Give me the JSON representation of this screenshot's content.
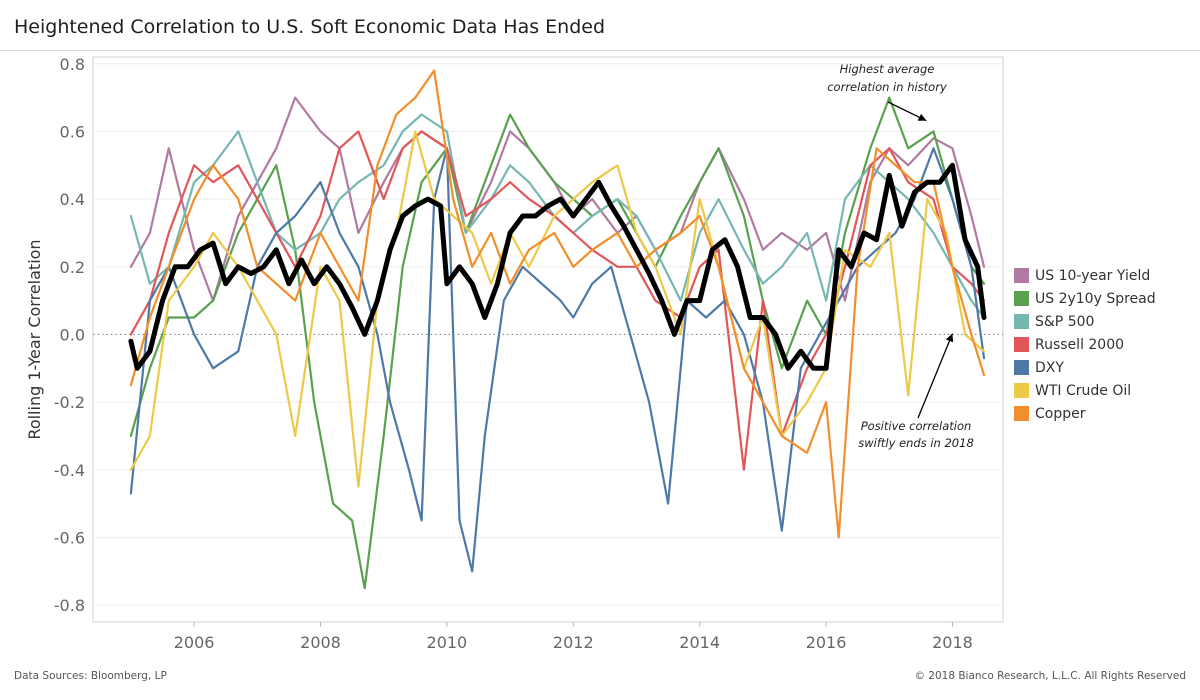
{
  "title": "Heightened Correlation to U.S. Soft Economic Data Has Ended",
  "footer": {
    "sources": "Data Sources: Bloomberg, LP",
    "copyright": "© 2018 Bianco Research, L.L.C. All Rights Reserved"
  },
  "legend": [
    {
      "label": "US 10-year Yield",
      "color": "#b07aa1"
    },
    {
      "label": "US 2y10y Spread",
      "color": "#59a14f"
    },
    {
      "label": "S&P 500",
      "color": "#76b7b2"
    },
    {
      "label": "Russell 2000",
      "color": "#e15759"
    },
    {
      "label": "DXY",
      "color": "#4e79a7"
    },
    {
      "label": "WTI Crude Oil",
      "color": "#edc948"
    },
    {
      "label": "Copper",
      "color": "#f28e2b"
    }
  ],
  "chart_data": {
    "type": "line",
    "title": "Heightened Correlation to U.S. Soft Economic Data Has Ended",
    "ylabel": "Rolling 1-Year Correlation",
    "xlabel": "",
    "xlim": [
      2004.4,
      2018.8
    ],
    "ylim": [
      -0.85,
      0.82
    ],
    "x_ticks": [
      2006,
      2008,
      2010,
      2012,
      2014,
      2016,
      2018
    ],
    "y_ticks": [
      -0.8,
      -0.6,
      -0.4,
      -0.2,
      0.0,
      0.2,
      0.4,
      0.6,
      0.8
    ],
    "y_tick_labels": [
      "-0.8",
      "-0.6",
      "-0.4",
      "-0.2",
      "0.0",
      "0.2",
      "0.4",
      "0.6",
      "0.8"
    ],
    "x_tick_labels": [
      "2006",
      "2008",
      "2010",
      "2012",
      "2014",
      "2016",
      "2018"
    ],
    "zero_line": "dotted",
    "grid": "horizontal",
    "legend_position": "right",
    "series": [
      {
        "name": "US 10-year Yield",
        "color": "#b07aa1",
        "width": 2.2,
        "x": [
          2005.0,
          2005.3,
          2005.6,
          2006.0,
          2006.3,
          2006.7,
          2007.0,
          2007.3,
          2007.6,
          2008.0,
          2008.3,
          2008.6,
          2009.0,
          2009.3,
          2009.6,
          2010.0,
          2010.3,
          2010.7,
          2011.0,
          2011.3,
          2011.7,
          2012.0,
          2012.3,
          2012.7,
          2013.0,
          2013.3,
          2013.7,
          2014.0,
          2014.3,
          2014.7,
          2015.0,
          2015.3,
          2015.7,
          2016.0,
          2016.3,
          2016.7,
          2017.0,
          2017.3,
          2017.7,
          2018.0,
          2018.3,
          2018.5
        ],
        "y": [
          0.2,
          0.3,
          0.55,
          0.25,
          0.1,
          0.35,
          0.45,
          0.55,
          0.7,
          0.6,
          0.55,
          0.3,
          0.45,
          0.55,
          0.6,
          0.55,
          0.3,
          0.45,
          0.6,
          0.55,
          0.45,
          0.35,
          0.4,
          0.3,
          0.35,
          0.25,
          0.3,
          0.45,
          0.55,
          0.4,
          0.25,
          0.3,
          0.25,
          0.3,
          0.1,
          0.45,
          0.55,
          0.5,
          0.58,
          0.55,
          0.35,
          0.2
        ]
      },
      {
        "name": "US 2y10y Spread",
        "color": "#59a14f",
        "width": 2.2,
        "x": [
          2005.0,
          2005.3,
          2005.6,
          2006.0,
          2006.3,
          2006.7,
          2007.0,
          2007.3,
          2007.6,
          2007.9,
          2008.2,
          2008.5,
          2008.7,
          2009.0,
          2009.3,
          2009.6,
          2010.0,
          2010.3,
          2010.7,
          2011.0,
          2011.3,
          2011.7,
          2012.0,
          2012.3,
          2012.7,
          2013.0,
          2013.3,
          2013.7,
          2014.0,
          2014.3,
          2014.7,
          2015.0,
          2015.3,
          2015.7,
          2016.0,
          2016.3,
          2016.7,
          2017.0,
          2017.3,
          2017.7,
          2018.0,
          2018.3,
          2018.5
        ],
        "y": [
          -0.3,
          -0.1,
          0.05,
          0.05,
          0.1,
          0.3,
          0.4,
          0.5,
          0.25,
          -0.2,
          -0.5,
          -0.55,
          -0.75,
          -0.3,
          0.2,
          0.45,
          0.55,
          0.3,
          0.5,
          0.65,
          0.55,
          0.45,
          0.4,
          0.35,
          0.4,
          0.3,
          0.2,
          0.35,
          0.45,
          0.55,
          0.35,
          0.1,
          -0.1,
          0.1,
          0.0,
          0.3,
          0.55,
          0.7,
          0.55,
          0.6,
          0.4,
          0.2,
          0.15
        ]
      },
      {
        "name": "S&P 500",
        "color": "#76b7b2",
        "width": 2.2,
        "x": [
          2005.0,
          2005.3,
          2005.6,
          2006.0,
          2006.3,
          2006.7,
          2007.0,
          2007.3,
          2007.6,
          2008.0,
          2008.3,
          2008.6,
          2009.0,
          2009.3,
          2009.6,
          2010.0,
          2010.3,
          2010.7,
          2011.0,
          2011.3,
          2011.7,
          2012.0,
          2012.3,
          2012.7,
          2013.0,
          2013.3,
          2013.7,
          2014.0,
          2014.3,
          2014.7,
          2015.0,
          2015.3,
          2015.7,
          2016.0,
          2016.3,
          2016.7,
          2017.0,
          2017.3,
          2017.7,
          2018.0,
          2018.3,
          2018.5
        ],
        "y": [
          0.35,
          0.15,
          0.2,
          0.45,
          0.5,
          0.6,
          0.45,
          0.3,
          0.25,
          0.3,
          0.4,
          0.45,
          0.5,
          0.6,
          0.65,
          0.6,
          0.3,
          0.4,
          0.5,
          0.45,
          0.35,
          0.3,
          0.35,
          0.4,
          0.35,
          0.25,
          0.1,
          0.3,
          0.4,
          0.25,
          0.15,
          0.2,
          0.3,
          0.1,
          0.4,
          0.5,
          0.45,
          0.4,
          0.3,
          0.2,
          0.1,
          0.05
        ]
      },
      {
        "name": "Russell 2000",
        "color": "#e15759",
        "width": 2.2,
        "x": [
          2005.0,
          2005.3,
          2005.6,
          2006.0,
          2006.3,
          2006.7,
          2007.0,
          2007.3,
          2007.6,
          2008.0,
          2008.3,
          2008.6,
          2009.0,
          2009.3,
          2009.6,
          2010.0,
          2010.3,
          2010.7,
          2011.0,
          2011.3,
          2011.7,
          2012.0,
          2012.3,
          2012.7,
          2013.0,
          2013.3,
          2013.7,
          2014.0,
          2014.3,
          2014.7,
          2015.0,
          2015.3,
          2015.7,
          2016.0,
          2016.3,
          2016.7,
          2017.0,
          2017.3,
          2017.7,
          2018.0,
          2018.3,
          2018.5
        ],
        "y": [
          0.0,
          0.1,
          0.3,
          0.5,
          0.45,
          0.5,
          0.4,
          0.3,
          0.2,
          0.35,
          0.55,
          0.6,
          0.4,
          0.55,
          0.6,
          0.55,
          0.35,
          0.4,
          0.45,
          0.4,
          0.35,
          0.3,
          0.25,
          0.2,
          0.2,
          0.1,
          0.05,
          0.2,
          0.25,
          -0.4,
          0.1,
          -0.3,
          -0.1,
          0.0,
          0.2,
          0.5,
          0.55,
          0.45,
          0.4,
          0.2,
          0.15,
          0.1
        ]
      },
      {
        "name": "DXY",
        "color": "#4e79a7",
        "width": 2.2,
        "x": [
          2005.0,
          2005.3,
          2005.6,
          2006.0,
          2006.3,
          2006.7,
          2007.0,
          2007.3,
          2007.6,
          2008.0,
          2008.3,
          2008.6,
          2008.9,
          2009.1,
          2009.4,
          2009.6,
          2009.8,
          2010.0,
          2010.2,
          2010.4,
          2010.6,
          2010.9,
          2011.2,
          2011.5,
          2011.8,
          2012.0,
          2012.3,
          2012.6,
          2012.9,
          2013.2,
          2013.5,
          2013.8,
          2014.1,
          2014.4,
          2014.7,
          2015.0,
          2015.3,
          2015.6,
          2015.9,
          2016.2,
          2016.5,
          2016.8,
          2017.1,
          2017.4,
          2017.7,
          2018.0,
          2018.3,
          2018.5
        ],
        "y": [
          -0.47,
          0.1,
          0.2,
          0.0,
          -0.1,
          -0.05,
          0.2,
          0.3,
          0.35,
          0.45,
          0.3,
          0.2,
          0.0,
          -0.2,
          -0.4,
          -0.55,
          0.4,
          0.55,
          -0.55,
          -0.7,
          -0.3,
          0.1,
          0.2,
          0.15,
          0.1,
          0.05,
          0.15,
          0.2,
          0.0,
          -0.2,
          -0.5,
          0.1,
          0.05,
          0.1,
          0.0,
          -0.2,
          -0.58,
          -0.1,
          0.0,
          0.1,
          0.2,
          0.25,
          0.3,
          0.4,
          0.55,
          0.4,
          0.2,
          -0.07
        ]
      },
      {
        "name": "WTI Crude Oil",
        "color": "#edc948",
        "width": 2.2,
        "x": [
          2005.0,
          2005.3,
          2005.6,
          2006.0,
          2006.3,
          2006.7,
          2007.0,
          2007.3,
          2007.6,
          2008.0,
          2008.3,
          2008.6,
          2008.9,
          2009.2,
          2009.5,
          2009.8,
          2010.1,
          2010.4,
          2010.7,
          2011.0,
          2011.3,
          2011.7,
          2012.0,
          2012.3,
          2012.7,
          2013.0,
          2013.3,
          2013.7,
          2014.0,
          2014.3,
          2014.7,
          2015.0,
          2015.3,
          2015.7,
          2016.0,
          2016.3,
          2016.7,
          2017.0,
          2017.3,
          2017.6,
          2017.9,
          2018.2,
          2018.5
        ],
        "y": [
          -0.4,
          -0.3,
          0.1,
          0.2,
          0.3,
          0.2,
          0.1,
          0.0,
          -0.3,
          0.2,
          0.1,
          -0.45,
          0.1,
          0.3,
          0.6,
          0.4,
          0.35,
          0.3,
          0.15,
          0.3,
          0.2,
          0.35,
          0.4,
          0.45,
          0.5,
          0.3,
          0.2,
          0.0,
          0.4,
          0.2,
          -0.1,
          0.05,
          -0.3,
          -0.2,
          -0.1,
          0.25,
          0.2,
          0.3,
          -0.18,
          0.4,
          0.3,
          0.0,
          -0.05
        ]
      },
      {
        "name": "Copper",
        "color": "#f28e2b",
        "width": 2.2,
        "x": [
          2005.0,
          2005.3,
          2005.6,
          2006.0,
          2006.3,
          2006.7,
          2007.0,
          2007.3,
          2007.6,
          2008.0,
          2008.3,
          2008.6,
          2008.9,
          2009.2,
          2009.5,
          2009.8,
          2010.1,
          2010.4,
          2010.7,
          2011.0,
          2011.3,
          2011.7,
          2012.0,
          2012.3,
          2012.7,
          2013.0,
          2013.3,
          2013.7,
          2014.0,
          2014.3,
          2014.7,
          2015.0,
          2015.3,
          2015.7,
          2016.0,
          2016.2,
          2016.5,
          2016.8,
          2017.1,
          2017.4,
          2017.7,
          2018.0,
          2018.3,
          2018.5
        ],
        "y": [
          -0.15,
          0.05,
          0.2,
          0.4,
          0.5,
          0.4,
          0.2,
          0.15,
          0.1,
          0.3,
          0.2,
          0.1,
          0.5,
          0.65,
          0.7,
          0.78,
          0.4,
          0.2,
          0.3,
          0.15,
          0.25,
          0.3,
          0.2,
          0.25,
          0.3,
          0.2,
          0.25,
          0.3,
          0.35,
          0.2,
          -0.1,
          -0.2,
          -0.3,
          -0.35,
          -0.2,
          -0.6,
          0.2,
          0.55,
          0.5,
          0.45,
          0.45,
          0.2,
          0.0,
          -0.12
        ]
      },
      {
        "name": "",
        "color": "#000000",
        "width": 5,
        "x": [
          2005.0,
          2005.1,
          2005.3,
          2005.5,
          2005.7,
          2005.9,
          2006.1,
          2006.3,
          2006.5,
          2006.7,
          2006.9,
          2007.1,
          2007.3,
          2007.5,
          2007.7,
          2007.9,
          2008.1,
          2008.3,
          2008.5,
          2008.7,
          2008.9,
          2009.1,
          2009.3,
          2009.5,
          2009.7,
          2009.9,
          2010.0,
          2010.2,
          2010.4,
          2010.6,
          2010.8,
          2011.0,
          2011.2,
          2011.4,
          2011.6,
          2011.8,
          2012.0,
          2012.2,
          2012.4,
          2012.6,
          2012.8,
          2013.0,
          2013.2,
          2013.4,
          2013.6,
          2013.8,
          2014.0,
          2014.2,
          2014.4,
          2014.6,
          2014.8,
          2015.0,
          2015.2,
          2015.4,
          2015.6,
          2015.8,
          2016.0,
          2016.2,
          2016.4,
          2016.6,
          2016.8,
          2017.0,
          2017.2,
          2017.4,
          2017.6,
          2017.8,
          2018.0,
          2018.2,
          2018.4,
          2018.5
        ],
        "y": [
          -0.02,
          -0.1,
          -0.05,
          0.1,
          0.2,
          0.2,
          0.25,
          0.27,
          0.15,
          0.2,
          0.18,
          0.2,
          0.25,
          0.15,
          0.22,
          0.15,
          0.2,
          0.15,
          0.08,
          0.0,
          0.1,
          0.25,
          0.35,
          0.38,
          0.4,
          0.38,
          0.15,
          0.2,
          0.15,
          0.05,
          0.15,
          0.3,
          0.35,
          0.35,
          0.38,
          0.4,
          0.35,
          0.4,
          0.45,
          0.38,
          0.32,
          0.25,
          0.18,
          0.1,
          0.0,
          0.1,
          0.1,
          0.25,
          0.28,
          0.2,
          0.05,
          0.05,
          0.0,
          -0.1,
          -0.05,
          -0.1,
          -0.1,
          0.25,
          0.2,
          0.3,
          0.28,
          0.47,
          0.32,
          0.42,
          0.45,
          0.45,
          0.5,
          0.28,
          0.2,
          0.05
        ]
      }
    ],
    "annotations": [
      {
        "text": [
          "Highest average",
          "correlation in history"
        ],
        "arrow_to": [
          2017.65,
          0.62
        ]
      },
      {
        "text": [
          "Positive correlation",
          "swiftly ends in 2018"
        ],
        "arrow_to": [
          2018.0,
          0.02
        ]
      }
    ]
  }
}
